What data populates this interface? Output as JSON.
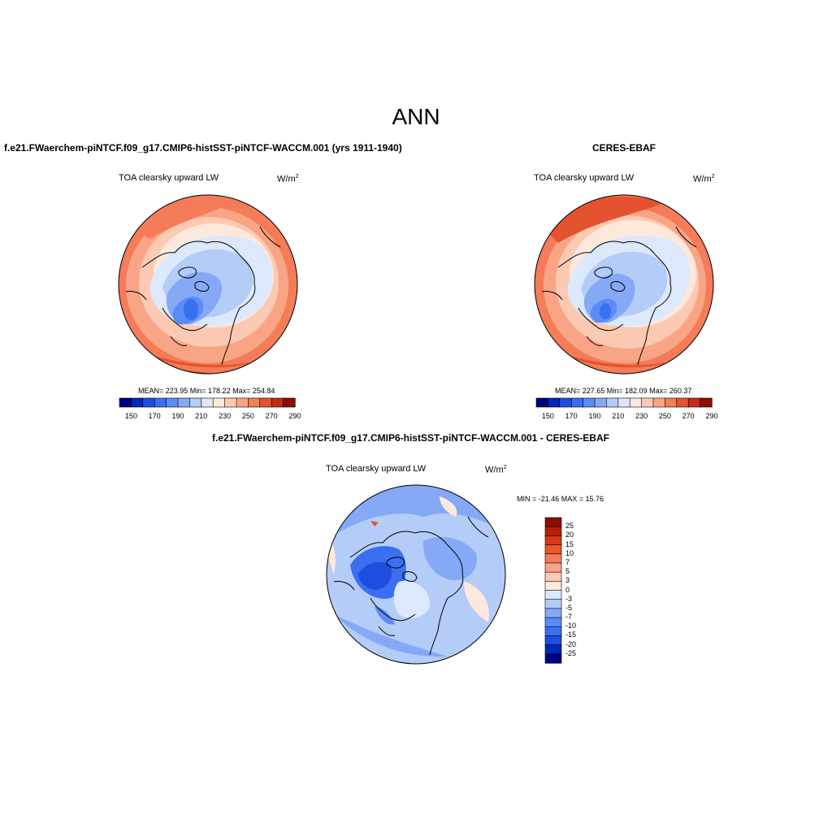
{
  "page": {
    "title": "ANN"
  },
  "panels": [
    {
      "id": "model",
      "case_title": "f.e21.FWaerchem-piNTCF.f09_g17.CMIP6-histSST-piNTCF-WACCM.001 (yrs 1911-1940)",
      "field": "TOA clearsky upward LW",
      "units_base": "W/m",
      "units_exp": "2",
      "stats": "MEAN= 223.95  Min= 178.22  Max= 254.84"
    },
    {
      "id": "obs",
      "case_title": "CERES-EBAF",
      "field": "TOA clearsky upward LW",
      "units_base": "W/m",
      "units_exp": "2",
      "stats": "MEAN= 227.65  Min= 182.09  Max= 260.37"
    },
    {
      "id": "diff",
      "case_title": "f.e21.FWaerchem-piNTCF.f09_g17.CMIP6-histSST-piNTCF-WACCM.001 - CERES-EBAF",
      "field": "TOA clearsky upward LW",
      "units_base": "W/m",
      "units_exp": "2",
      "stats": "MIN = -21.46 MAX =  15.76"
    }
  ],
  "chart_data": [
    {
      "type": "heatmap",
      "projection": "north-polar-stereographic",
      "title": "f.e21.FWaerchem-piNTCF.f09_g17.CMIP6-histSST-piNTCF-WACCM.001 (yrs 1911-1940)",
      "variable": "TOA clearsky upward LW",
      "units": "W/m2",
      "mean": 223.95,
      "min": 178.22,
      "max": 254.84,
      "colorbar_ticks": [
        150,
        170,
        190,
        210,
        230,
        250,
        270,
        290
      ],
      "colorbar_colors": [
        "#00007f",
        "#0027b8",
        "#1f4ddf",
        "#3a6ff0",
        "#5b8bf5",
        "#86a9f7",
        "#b4ccf8",
        "#dce8fb",
        "#fde9dc",
        "#fccab3",
        "#f9a585",
        "#f47c58",
        "#e4532f",
        "#c42b15",
        "#8d0c03"
      ]
    },
    {
      "type": "heatmap",
      "projection": "north-polar-stereographic",
      "title": "CERES-EBAF",
      "variable": "TOA clearsky upward LW",
      "units": "W/m2",
      "mean": 227.65,
      "min": 182.09,
      "max": 260.37,
      "colorbar_ticks": [
        150,
        170,
        190,
        210,
        230,
        250,
        270,
        290
      ],
      "colorbar_colors": [
        "#00007f",
        "#0027b8",
        "#1f4ddf",
        "#3a6ff0",
        "#5b8bf5",
        "#86a9f7",
        "#b4ccf8",
        "#dce8fb",
        "#fde9dc",
        "#fccab3",
        "#f9a585",
        "#f47c58",
        "#e4532f",
        "#c42b15",
        "#8d0c03"
      ]
    },
    {
      "type": "heatmap",
      "projection": "north-polar-stereographic",
      "title": "f.e21.FWaerchem-piNTCF.f09_g17.CMIP6-histSST-piNTCF-WACCM.001 - CERES-EBAF",
      "variable": "TOA clearsky upward LW",
      "units": "W/m2",
      "min": -21.46,
      "max": 15.76,
      "colorbar_ticks": [
        25,
        20,
        15,
        10,
        7,
        5,
        3,
        0,
        -3,
        -5,
        -7,
        -10,
        -15,
        -20,
        -25
      ],
      "colorbar_colors": [
        "#8d0c03",
        "#b41f0a",
        "#d73815",
        "#ee5529",
        "#f47c58",
        "#f9a585",
        "#fccab3",
        "#fde9dc",
        "#dce8fb",
        "#b4ccf8",
        "#86a9f7",
        "#5b8bf5",
        "#3a6ff0",
        "#1f4ddf",
        "#0027b8",
        "#00007f"
      ]
    }
  ]
}
